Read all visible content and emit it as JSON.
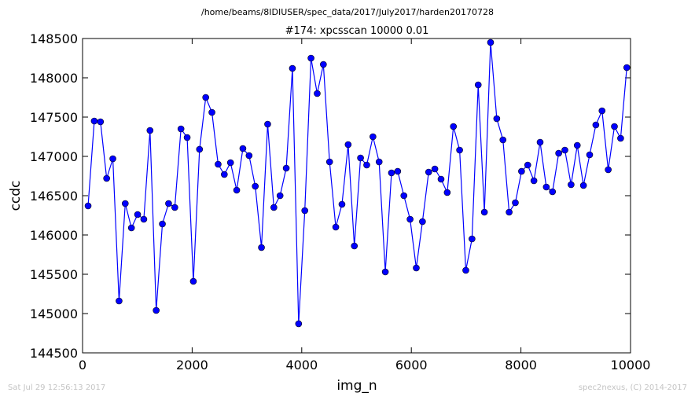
{
  "figure": {
    "suptitle": "/home/beams/8IDIUSER/spec_data/2017/July2017/harden20170728",
    "footer_left": "Sat Jul 29 12:56:13 2017",
    "footer_right": "spec2nexus, (C) 2014-2017"
  },
  "chart_data": {
    "type": "line",
    "title": "#174: xpcsscan 10000 0.01",
    "xlabel": "img_n",
    "ylabel": "ccdc",
    "xlim": [
      0,
      10000
    ],
    "ylim": [
      144500,
      148500
    ],
    "xticks": [
      0,
      2000,
      4000,
      6000,
      8000,
      10000
    ],
    "yticks": [
      144500,
      145000,
      145500,
      146000,
      146500,
      147000,
      147500,
      148000,
      148500
    ],
    "grid": false,
    "legend": "none",
    "colors": {
      "line": "#0000ff",
      "marker": "#0000ff",
      "marker_edge": "#000000"
    },
    "x": [
      101,
      214,
      327,
      440,
      553,
      666,
      779,
      892,
      1005,
      1118,
      1231,
      1344,
      1457,
      1570,
      1683,
      1796,
      1909,
      2022,
      2135,
      2248,
      2361,
      2474,
      2587,
      2700,
      2813,
      2926,
      3039,
      3152,
      3265,
      3378,
      3491,
      3604,
      3717,
      3830,
      3943,
      4056,
      4169,
      4282,
      4395,
      4508,
      4621,
      4734,
      4847,
      4960,
      5073,
      5186,
      5299,
      5412,
      5525,
      5638,
      5751,
      5864,
      5977,
      6090,
      6203,
      6316,
      6429,
      6542,
      6655,
      6768,
      6881,
      6994,
      7107,
      7220,
      7333,
      7446,
      7559,
      7672,
      7785,
      7898,
      8011,
      8124,
      8237,
      8350,
      8463,
      8576,
      8689,
      8802,
      8915,
      9028,
      9141,
      9254,
      9367,
      9480,
      9593,
      9706,
      9819,
      9932
    ],
    "y": [
      146370,
      147450,
      147440,
      146720,
      146970,
      145160,
      146400,
      146090,
      146260,
      146200,
      147330,
      145040,
      146140,
      146400,
      146350,
      147350,
      147240,
      145410,
      147090,
      147750,
      147560,
      146900,
      146770,
      146920,
      146570,
      147100,
      147010,
      146620,
      145840,
      147410,
      146350,
      146500,
      146850,
      148120,
      144870,
      146310,
      148250,
      147800,
      148170,
      146930,
      146100,
      146390,
      147150,
      145860,
      146980,
      146890,
      147250,
      146930,
      145530,
      146790,
      146810,
      146500,
      146200,
      145580,
      146170,
      146800,
      146840,
      146710,
      146540,
      147380,
      147080,
      145550,
      145950,
      147910,
      146290,
      148450,
      147480,
      147210,
      146290,
      146410,
      146810,
      146890,
      146690,
      147180,
      146610,
      146550,
      147040,
      147080,
      146640,
      147140,
      146630,
      147020,
      147400,
      147580,
      146830,
      147380,
      147230,
      148130
    ]
  }
}
